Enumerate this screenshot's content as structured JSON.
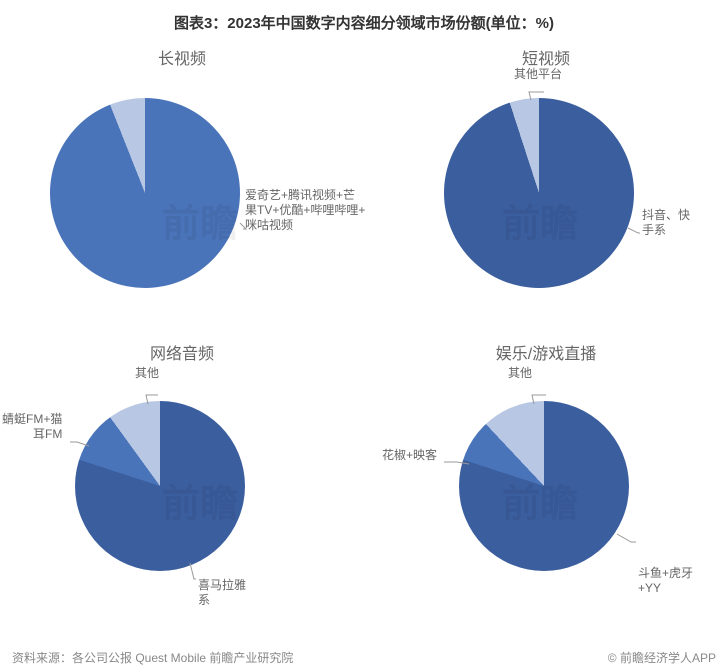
{
  "title": "图表3：2023年中国数字内容细分领域市场份额(单位：%)",
  "title_fontsize": 15,
  "title_color": "#333333",
  "subtitle_fontsize": 16,
  "subtitle_color": "#666666",
  "label_fontsize": 12,
  "label_color": "#666666",
  "footer_fontsize": 12,
  "footer_color": "#888888",
  "background_color": "#ffffff",
  "leader_color": "#999999",
  "pie_radius_px_row1": 95,
  "pie_radius_px_row2": 85,
  "pie_start_angle_deg": 0,
  "charts": [
    {
      "key": "long_video",
      "title": "长视频",
      "type": "pie",
      "slices": [
        {
          "label": "爱奇艺+腾讯视频+芒\n果TV+优酷+哔哩哔哩+\n咪咕视频",
          "value": 94,
          "color": "#4a74b9"
        },
        {
          "label": "",
          "value": 6,
          "color": "#b7c7e4"
        }
      ]
    },
    {
      "key": "short_video",
      "title": "短视频",
      "type": "pie",
      "slices": [
        {
          "label": "抖音、快\n手系",
          "value": 95,
          "color": "#3b5e9e"
        },
        {
          "label": "其他平台",
          "value": 5,
          "color": "#b7c7e4"
        }
      ]
    },
    {
      "key": "online_audio",
      "title": "网络音频",
      "type": "pie",
      "slices": [
        {
          "label": "喜马拉雅\n系",
          "value": 80,
          "color": "#3b5e9e"
        },
        {
          "label": "蜻蜓FM+猫\n耳FM",
          "value": 10,
          "color": "#4a74b9"
        },
        {
          "label": "其他",
          "value": 10,
          "color": "#b7c7e4"
        }
      ]
    },
    {
      "key": "live_stream",
      "title": "娱乐/游戏直播",
      "type": "pie",
      "slices": [
        {
          "label": "斗鱼+虎牙\n+YY",
          "value": 80,
          "color": "#3b5e9e"
        },
        {
          "label": "花椒+映客",
          "value": 8,
          "color": "#4a74b9"
        },
        {
          "label": "其他",
          "value": 12,
          "color": "#b7c7e4"
        }
      ]
    }
  ],
  "source_text": "资料来源：各公司公报 Quest Mobile 前瞻产业研究院",
  "credit_text": "© 前瞻经济学人APP",
  "watermark": {
    "text": "前瞻",
    "fontsize": 38,
    "color_alpha": 0.06
  }
}
